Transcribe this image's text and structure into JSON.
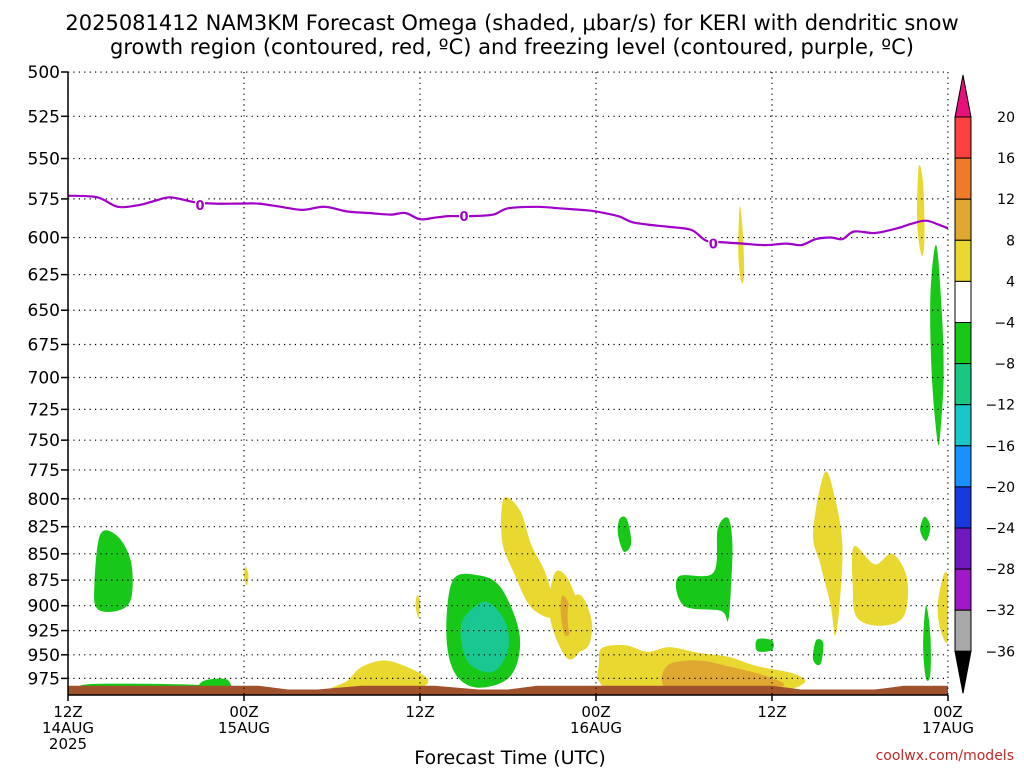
{
  "chart_data": {
    "type": "contour",
    "title_lines": [
      "2025081412 NAM3KM Forecast Omega (shaded, μbar/s) for KERI with dendritic snow",
      "growth region (contoured, red, ºC) and freezing level (contoured, purple, ºC)"
    ],
    "xlabel": "Forecast Time (UTC)",
    "credit": "coolwx.com/models",
    "x_range_hours": [
      0,
      60
    ],
    "x_ticks": [
      {
        "hour": 0,
        "lines": [
          "12Z",
          "14AUG",
          "2025"
        ]
      },
      {
        "hour": 12,
        "lines": [
          "00Z",
          "15AUG"
        ]
      },
      {
        "hour": 24,
        "lines": [
          "12Z"
        ]
      },
      {
        "hour": 36,
        "lines": [
          "00Z",
          "16AUG"
        ]
      },
      {
        "hour": 48,
        "lines": [
          "12Z"
        ]
      },
      {
        "hour": 60,
        "lines": [
          "00Z",
          "17AUG"
        ]
      }
    ],
    "y_range_hpa": [
      500,
      993
    ],
    "y_scale": "log",
    "y_ticks": [
      500,
      525,
      550,
      575,
      600,
      625,
      650,
      675,
      700,
      725,
      750,
      775,
      800,
      825,
      850,
      875,
      900,
      925,
      950,
      975
    ],
    "grid": true,
    "colorbar": {
      "labels": [
        "20",
        "16",
        "12",
        "8",
        "4",
        "−4",
        "−8",
        "−12",
        "−16",
        "−20",
        "−24",
        "−28",
        "−32",
        "−36"
      ],
      "colors": [
        "#ff4040",
        "#ef7b28",
        "#e0a830",
        "#e8d830",
        "#ffffff",
        "#18c818",
        "#18c880",
        "#18c8c8",
        "#1890ff",
        "#1838e0",
        "#7018c0",
        "#a018c8",
        "#a8a8a8"
      ],
      "top_arrow_color": "#e8107a",
      "bottom_arrow_color": "#000000"
    },
    "freezing_level": {
      "color": "#a000c8",
      "label": "0",
      "points": [
        [
          0,
          573
        ],
        [
          2,
          574
        ],
        [
          3.4,
          580
        ],
        [
          4.8,
          579
        ],
        [
          6,
          576
        ],
        [
          7,
          574
        ],
        [
          8.6,
          577
        ],
        [
          10,
          578
        ],
        [
          11.5,
          578
        ],
        [
          13,
          578
        ],
        [
          14.5,
          580
        ],
        [
          16,
          582
        ],
        [
          17.5,
          580
        ],
        [
          19,
          583
        ],
        [
          20.5,
          584
        ],
        [
          22,
          585
        ],
        [
          23,
          584
        ],
        [
          24,
          588
        ],
        [
          25,
          587
        ],
        [
          26,
          586
        ],
        [
          27.5,
          586
        ],
        [
          29,
          585
        ],
        [
          30,
          581
        ],
        [
          32,
          580
        ],
        [
          33.5,
          581
        ],
        [
          35,
          582
        ],
        [
          36,
          583
        ],
        [
          37.5,
          586
        ],
        [
          38.5,
          590
        ],
        [
          40,
          592
        ],
        [
          41,
          593
        ],
        [
          42.5,
          595
        ],
        [
          43.5,
          602
        ],
        [
          44.5,
          603
        ],
        [
          46,
          604
        ],
        [
          47.5,
          605
        ],
        [
          49,
          604
        ],
        [
          50,
          605
        ],
        [
          51,
          601
        ],
        [
          52,
          600
        ],
        [
          52.8,
          601
        ],
        [
          53.6,
          596
        ],
        [
          55,
          597
        ],
        [
          56.5,
          594
        ],
        [
          57.5,
          591
        ],
        [
          58.5,
          589
        ],
        [
          59.5,
          592
        ],
        [
          60,
          594
        ]
      ],
      "label_positions": [
        [
          9,
          579
        ],
        [
          27,
          586
        ],
        [
          44,
          604
        ]
      ]
    },
    "omega_regions": [
      {
        "value": -5,
        "color": "#18c818",
        "points": [
          [
            2.2,
            832
          ],
          [
            3.4,
            834
          ],
          [
            4.3,
            858
          ],
          [
            4.3,
            893
          ],
          [
            3.4,
            905
          ],
          [
            2.0,
            903
          ],
          [
            1.8,
            880
          ]
        ]
      },
      {
        "value": -5,
        "color": "#18c818",
        "points": [
          [
            26.2,
            876
          ],
          [
            27.8,
            870
          ],
          [
            29.5,
            882
          ],
          [
            30.8,
            930
          ],
          [
            30.2,
            972
          ],
          [
            28.0,
            985
          ],
          [
            26.4,
            970
          ],
          [
            25.8,
            930
          ]
        ]
      },
      {
        "value": -9,
        "color": "#18c890",
        "points": [
          [
            27.0,
            912
          ],
          [
            28.5,
            896
          ],
          [
            29.8,
            916
          ],
          [
            30.0,
            945
          ],
          [
            29.0,
            968
          ],
          [
            27.4,
            960
          ],
          [
            26.8,
            935
          ]
        ]
      },
      {
        "value": 5,
        "color": "#e8d830",
        "points": [
          [
            29.7,
            800
          ],
          [
            30.8,
            810
          ],
          [
            31.6,
            842
          ],
          [
            32.6,
            870
          ],
          [
            33.2,
            910
          ],
          [
            31.6,
            902
          ],
          [
            30.4,
            868
          ],
          [
            29.6,
            838
          ]
        ]
      },
      {
        "value": 5,
        "color": "#e8d830",
        "points": [
          [
            33.2,
            868
          ],
          [
            34.0,
            872
          ],
          [
            34.8,
            900
          ],
          [
            35.2,
            935
          ],
          [
            34.2,
            955
          ],
          [
            33.2,
            930
          ],
          [
            32.8,
            900
          ]
        ]
      },
      {
        "value": 9,
        "color": "#e0a830",
        "points": [
          [
            33.7,
            890
          ],
          [
            34.2,
            900
          ],
          [
            34.4,
            922
          ],
          [
            33.9,
            930
          ],
          [
            33.6,
            908
          ]
        ]
      },
      {
        "value": 5,
        "color": "#e8d830",
        "points": [
          [
            20.0,
            963
          ],
          [
            21.5,
            956
          ],
          [
            23.0,
            962
          ],
          [
            24.5,
            975
          ],
          [
            24.0,
            985
          ],
          [
            21.5,
            988
          ],
          [
            18.0,
            987
          ],
          [
            19.0,
            978
          ]
        ]
      },
      {
        "value": 5,
        "color": "#e8d830",
        "points": [
          [
            36.4,
            943
          ],
          [
            38.0,
            940
          ],
          [
            39.5,
            947
          ],
          [
            41.0,
            942
          ],
          [
            43.0,
            948
          ],
          [
            45.0,
            952
          ],
          [
            47.0,
            962
          ],
          [
            49.5,
            970
          ],
          [
            50.2,
            980
          ],
          [
            48.0,
            990
          ],
          [
            42.0,
            990
          ],
          [
            37.5,
            990
          ],
          [
            36.2,
            978
          ],
          [
            36.2,
            960
          ]
        ]
      },
      {
        "value": 9,
        "color": "#e0a830",
        "points": [
          [
            41.0,
            960
          ],
          [
            43.0,
            956
          ],
          [
            45.0,
            962
          ],
          [
            47.5,
            972
          ],
          [
            48.8,
            983
          ],
          [
            46.0,
            990
          ],
          [
            41.5,
            990
          ],
          [
            40.5,
            978
          ]
        ]
      },
      {
        "value": 5,
        "color": "#e8d830",
        "points": [
          [
            34.2,
            896
          ],
          [
            35.0,
            890
          ],
          [
            35.7,
            915
          ],
          [
            35.5,
            940
          ],
          [
            34.6,
            945
          ],
          [
            34.1,
            920
          ]
        ]
      },
      {
        "value": -5,
        "color": "#18c818",
        "points": [
          [
            44.3,
            827
          ],
          [
            45.0,
            817
          ],
          [
            45.3,
            840
          ],
          [
            45.2,
            883
          ],
          [
            45.0,
            915
          ],
          [
            44.5,
            905
          ],
          [
            42.0,
            900
          ],
          [
            41.6,
            872
          ],
          [
            44.0,
            868
          ]
        ]
      },
      {
        "value": 5,
        "color": "#e8d830",
        "points": [
          [
            51.6,
            777
          ],
          [
            52.3,
            800
          ],
          [
            52.8,
            842
          ],
          [
            52.6,
            900
          ],
          [
            52.3,
            930
          ],
          [
            52.0,
            900
          ],
          [
            51.3,
            860
          ],
          [
            50.8,
            830
          ]
        ]
      },
      {
        "value": 5,
        "color": "#e8d830",
        "points": [
          [
            53.6,
            843
          ],
          [
            55.0,
            860
          ],
          [
            56.2,
            850
          ],
          [
            57.2,
            873
          ],
          [
            57.0,
            910
          ],
          [
            55.5,
            920
          ],
          [
            53.8,
            912
          ],
          [
            53.5,
            880
          ]
        ]
      },
      {
        "value": -5,
        "color": "#18c818",
        "points": [
          [
            59.2,
            605
          ],
          [
            59.6,
            655
          ],
          [
            59.7,
            700
          ],
          [
            59.5,
            740
          ],
          [
            59.3,
            752
          ],
          [
            58.9,
            700
          ],
          [
            58.8,
            640
          ]
        ]
      },
      {
        "value": -5,
        "color": "#18c818",
        "points": [
          [
            58.5,
            900
          ],
          [
            58.8,
            930
          ],
          [
            58.8,
            970
          ],
          [
            58.5,
            975
          ],
          [
            58.3,
            940
          ]
        ]
      },
      {
        "value": -5,
        "color": "#18c818",
        "points": [
          [
            37.6,
            818
          ],
          [
            38.1,
            818
          ],
          [
            38.4,
            840
          ],
          [
            37.9,
            848
          ],
          [
            37.5,
            832
          ]
        ]
      },
      {
        "value": -5,
        "color": "#18c818",
        "points": [
          [
            58.4,
            816
          ],
          [
            58.8,
            825
          ],
          [
            58.5,
            838
          ],
          [
            58.1,
            828
          ]
        ]
      },
      {
        "value": -5,
        "color": "#18c818",
        "points": [
          [
            51.0,
            935
          ],
          [
            51.5,
            938
          ],
          [
            51.3,
            960
          ],
          [
            50.8,
            955
          ]
        ]
      },
      {
        "value": -5,
        "color": "#18c818",
        "points": [
          [
            47.0,
            934
          ],
          [
            48.0,
            935
          ],
          [
            48.0,
            945
          ],
          [
            47.0,
            946
          ]
        ]
      },
      {
        "value": 5,
        "color": "#e8d830",
        "points": [
          [
            59.7,
            870
          ],
          [
            60.0,
            875
          ],
          [
            60.0,
            935
          ],
          [
            59.5,
            925
          ],
          [
            59.3,
            900
          ]
        ]
      },
      {
        "value": 5,
        "color": "#e8d830",
        "points": [
          [
            58.0,
            555
          ],
          [
            58.3,
            565
          ],
          [
            58.4,
            600
          ],
          [
            58.2,
            612
          ],
          [
            57.9,
            590
          ]
        ]
      },
      {
        "value": 5,
        "color": "#e8d830",
        "points": [
          [
            45.8,
            580
          ],
          [
            46.0,
            595
          ],
          [
            46.1,
            625
          ],
          [
            45.9,
            630
          ],
          [
            45.7,
            610
          ]
        ]
      },
      {
        "value": 5,
        "color": "#e8d830",
        "points": [
          [
            12.1,
            862
          ],
          [
            12.3,
            870
          ],
          [
            12.2,
            880
          ],
          [
            12.0,
            872
          ]
        ]
      },
      {
        "value": 5,
        "color": "#e8d830",
        "points": [
          [
            23.8,
            890
          ],
          [
            24.0,
            895
          ],
          [
            23.9,
            912
          ],
          [
            23.7,
            900
          ]
        ]
      },
      {
        "value": -5,
        "color": "#18c818",
        "points": [
          [
            9.2,
            978
          ],
          [
            10.8,
            976
          ],
          [
            11.0,
            990
          ],
          [
            9.0,
            990
          ]
        ]
      },
      {
        "value": -5,
        "color": "#18c818",
        "points": [
          [
            1.6,
            981
          ],
          [
            9.0,
            982
          ],
          [
            9.0,
            987
          ],
          [
            1.6,
            988
          ]
        ]
      }
    ],
    "terrain": {
      "color": "#a0522d",
      "points": [
        [
          0,
          993
        ],
        [
          0,
          983
        ],
        [
          10,
          983
        ],
        [
          13,
          983
        ],
        [
          15,
          987
        ],
        [
          17,
          987
        ],
        [
          20,
          983
        ],
        [
          25,
          983
        ],
        [
          28,
          987
        ],
        [
          30,
          987
        ],
        [
          32,
          983
        ],
        [
          40,
          983
        ],
        [
          48,
          983
        ],
        [
          50,
          987
        ],
        [
          55,
          987
        ],
        [
          57,
          983
        ],
        [
          60,
          983
        ],
        [
          60,
          993
        ]
      ]
    }
  }
}
